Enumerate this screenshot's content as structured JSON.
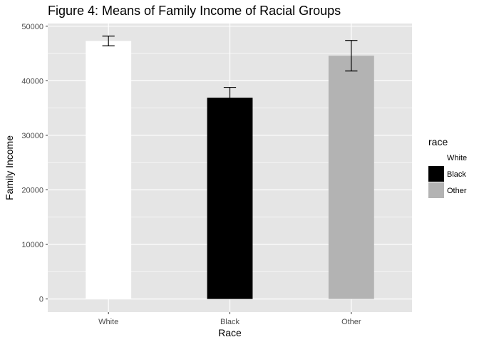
{
  "chart_data": {
    "type": "bar",
    "title": "Figure 4: Means of Family Income of Racial Groups",
    "xlabel": "Race",
    "ylabel": "Family Income",
    "categories": [
      "White",
      "Black",
      "Other"
    ],
    "values": [
      47300,
      36900,
      44600
    ],
    "error_low": [
      46400,
      35900,
      41800
    ],
    "error_high": [
      48200,
      38800,
      47400
    ],
    "ylim": [
      -2400,
      50500
    ],
    "yticks": [
      0,
      10000,
      20000,
      30000,
      40000,
      50000
    ],
    "ytick_labels": [
      "0",
      "10000",
      "20000",
      "30000",
      "40000",
      "50000"
    ],
    "grid": true,
    "panel_color": "#e5e5e5",
    "grid_color": "#ffffff",
    "bar_colors": [
      "#ffffff",
      "#000000",
      "#b3b3b3"
    ],
    "errorbar_color": "#000000",
    "legend": {
      "title": "race",
      "position": "right",
      "entries": [
        {
          "label": "White",
          "color": "#ffffff"
        },
        {
          "label": "Black",
          "color": "#000000"
        },
        {
          "label": "Other",
          "color": "#b3b3b3"
        }
      ]
    }
  }
}
